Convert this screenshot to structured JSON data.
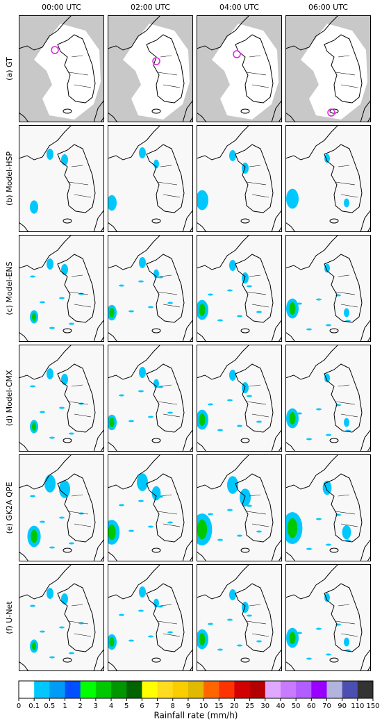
{
  "columns": [
    "00:00 UTC",
    "02:00 UTC",
    "04:00 UTC",
    "06:00 UTC"
  ],
  "rows": [
    "(a) GT",
    "(b) Model-HSP",
    "(c) Model-ENS",
    "(d) Model-CMX",
    "(e) GK2A QPE",
    "(f) U-Net"
  ],
  "colorbar": {
    "ticks": [
      0,
      0.1,
      0.5,
      1,
      2,
      3,
      4,
      5,
      6,
      7,
      8,
      9,
      10,
      15,
      20,
      25,
      30,
      40,
      50,
      60,
      70,
      90,
      110,
      150
    ],
    "colors": [
      "#ffffff",
      "#00c8ff",
      "#009bf5",
      "#0050ff",
      "#00ff00",
      "#00c800",
      "#009600",
      "#006400",
      "#ffff00",
      "#ffdc1f",
      "#f9cd00",
      "#e0b900",
      "#ff6600",
      "#ff3300",
      "#d20000",
      "#b40000",
      "#e0a9ff",
      "#c97bff",
      "#b35cff",
      "#9900ff",
      "#b3b4de",
      "#4c4eb1",
      "#333333"
    ],
    "label": "Rainfall rate (mm/h)"
  }
}
